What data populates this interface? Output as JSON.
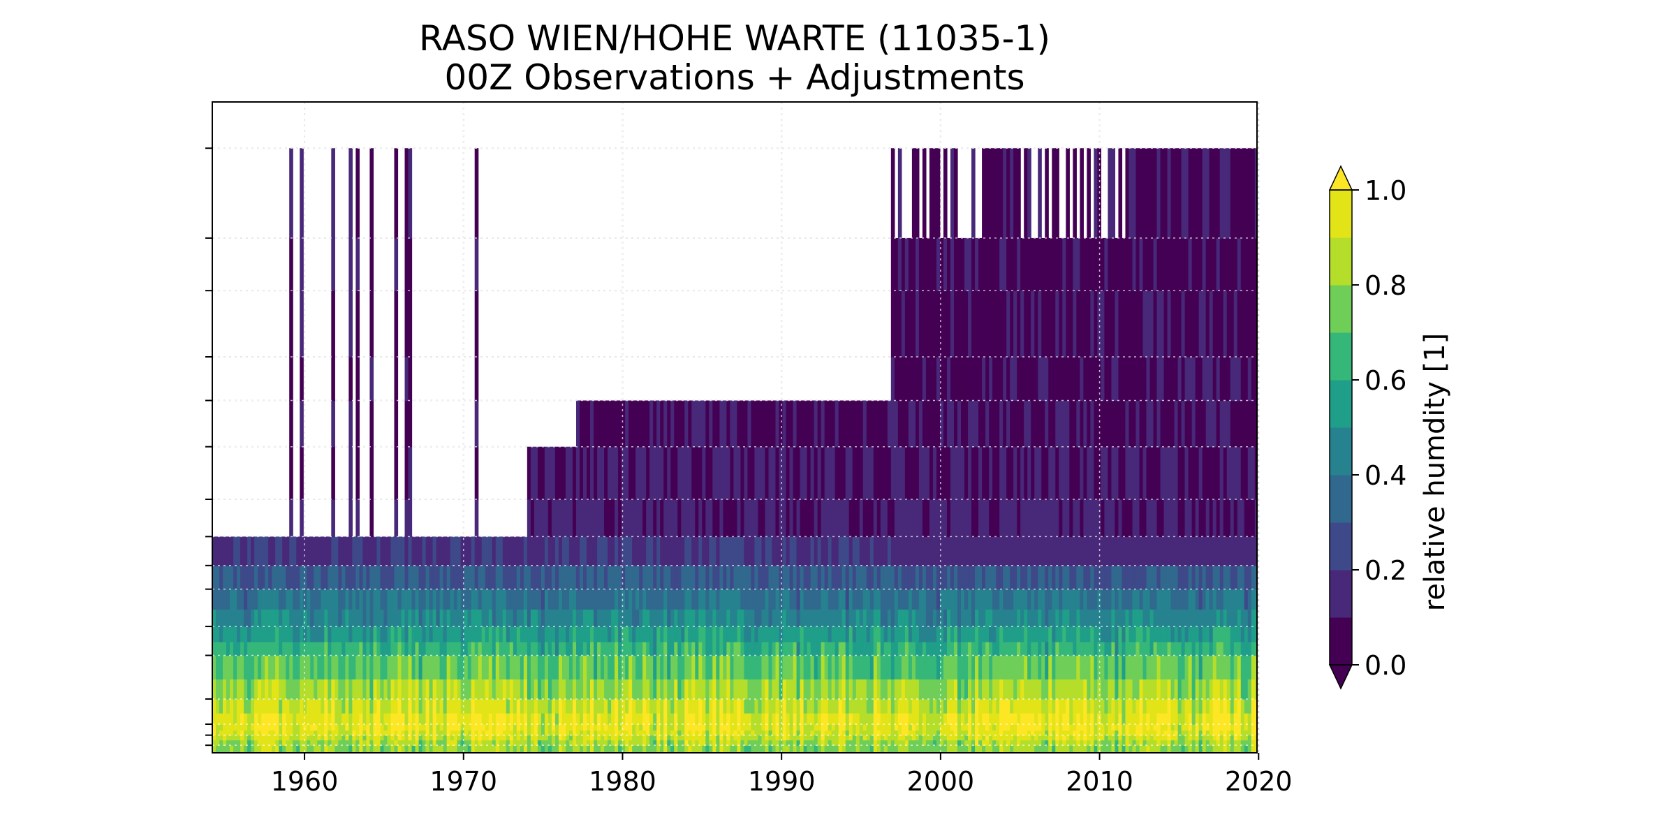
{
  "chart_data": {
    "type": "heatmap",
    "title": "RASO WIEN/HOHE WARTE (11035-1)",
    "subtitle": "00Z Observations + Adjustments",
    "xlabel": "",
    "ylabel": "",
    "xlim": [
      1954.2,
      2019.9
    ],
    "x_ticks": [
      1960,
      1970,
      1980,
      1990,
      2000,
      2010,
      2020
    ],
    "x_tick_labels": [
      "1960",
      "1970",
      "1980",
      "1990",
      "2000",
      "2010",
      "2020"
    ],
    "y_levels_hPa": [
      10,
      20,
      30,
      50,
      70,
      100,
      150,
      200,
      250,
      300,
      400,
      500,
      700,
      850,
      925,
      1000
    ],
    "y_axis": "pressure, log scale, unlabeled ticks",
    "grid": true,
    "colorbar": {
      "label": "relative humdity [1]",
      "min": 0.0,
      "max": 1.0,
      "tick_values": [
        0.0,
        0.2,
        0.4,
        0.6,
        0.8,
        1.0
      ],
      "tick_labels": [
        "0.0",
        "0.2",
        "0.4",
        "0.6",
        "0.8",
        "1.0"
      ],
      "extend": "both",
      "levels": 11,
      "colors": [
        "#440154",
        "#482878",
        "#3e4989",
        "#31688e",
        "#26828e",
        "#1f9e89",
        "#35b779",
        "#6ece58",
        "#b5de2b",
        "#e3e418",
        "#fde725"
      ]
    },
    "data_coverage": [
      {
        "start": 1954.2,
        "end": 1957.5,
        "top_hPa": 200,
        "note": "interpolated ramp"
      },
      {
        "start": 1957.5,
        "end": 1973.8,
        "top_hPa": 200,
        "spikes_to_hPa": 10
      },
      {
        "start": 1973.8,
        "end": 1977.0,
        "top_hPa": 100
      },
      {
        "start": 1977.0,
        "end": 1996.8,
        "top_hPa": 70
      },
      {
        "start": 1996.8,
        "end": 2011.5,
        "top_hPa": 20,
        "spikes_to_hPa": 10
      },
      {
        "start": 2011.5,
        "end": 2019.8,
        "top_hPa": 10
      }
    ],
    "typical_profile": [
      {
        "hPa": 1000,
        "rh": 0.75
      },
      {
        "hPa": 925,
        "rh": 0.88
      },
      {
        "hPa": 850,
        "rh": 0.95
      },
      {
        "hPa": 700,
        "rh": 0.82
      },
      {
        "hPa": 500,
        "rh": 0.62
      },
      {
        "hPa": 400,
        "rh": 0.45
      },
      {
        "hPa": 300,
        "rh": 0.3
      },
      {
        "hPa": 200,
        "rh": 0.08
      },
      {
        "hPa": 100,
        "rh": 0.03
      },
      {
        "hPa": 10,
        "rh": 0.02
      }
    ]
  }
}
